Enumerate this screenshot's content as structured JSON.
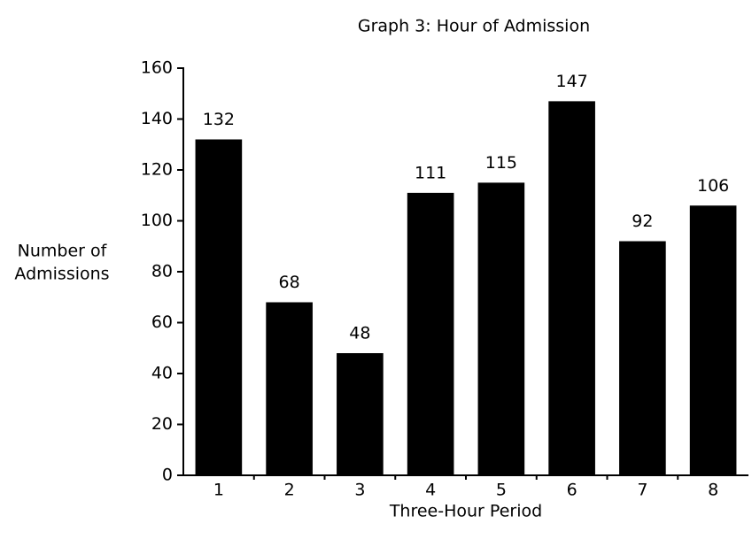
{
  "chart_data": {
    "type": "bar",
    "title": "Graph 3: Hour of Admission",
    "y_label": [
      "Number of",
      "Admissions"
    ],
    "x_label": "Three-Hour Period",
    "categories": [
      "1",
      "2",
      "3",
      "4",
      "5",
      "6",
      "7",
      "8"
    ],
    "values": [
      132,
      68,
      48,
      111,
      115,
      147,
      92,
      106
    ],
    "color": "#000000",
    "ylim": [
      0,
      160
    ],
    "yticks": [
      0,
      20,
      40,
      60,
      80,
      100,
      120,
      140,
      160
    ],
    "grid": false
  }
}
